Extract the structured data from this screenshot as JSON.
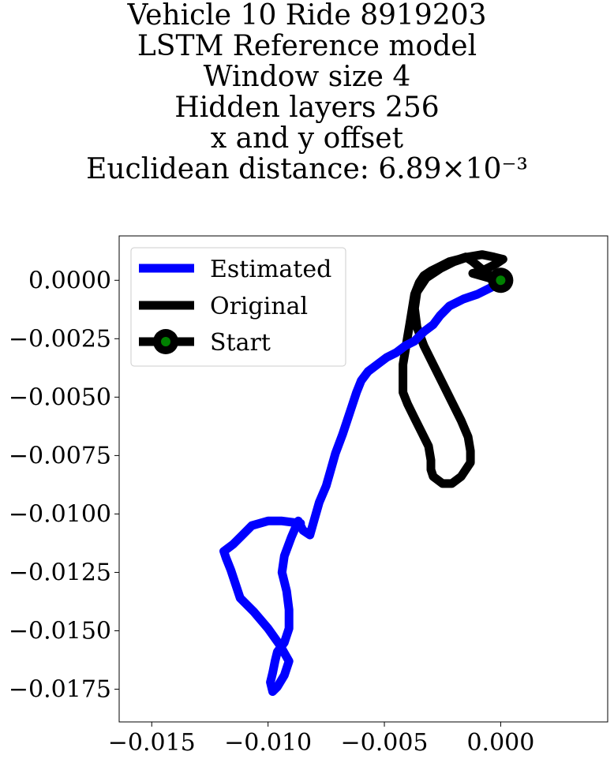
{
  "chart_data": {
    "type": "line",
    "title_lines": [
      "Vehicle 10 Ride 8919203",
      "LSTM Reference model",
      "Window size 4",
      "Hidden layers 256",
      "x and y offset",
      "Euclidean distance: 6.89×10⁻³"
    ],
    "xlabel": "",
    "ylabel": "",
    "xlim": [
      -0.0164,
      0.0046
    ],
    "ylim": [
      -0.0189,
      0.0019
    ],
    "x_ticks": [
      -0.015,
      -0.01,
      -0.005,
      0.0
    ],
    "x_tick_labels": [
      "−0.015",
      "−0.010",
      "−0.005",
      "0.000"
    ],
    "y_ticks": [
      0.0,
      -0.0025,
      -0.005,
      -0.0075,
      -0.01,
      -0.0125,
      -0.015,
      -0.0175
    ],
    "y_tick_labels": [
      "0.0000",
      "−0.0025",
      "−0.0050",
      "−0.0075",
      "−0.0100",
      "−0.0125",
      "−0.0150",
      "−0.0175"
    ],
    "grid": false,
    "legend_position": "top-left",
    "series": [
      {
        "name": "Estimated",
        "color": "#0000ff",
        "points": [
          [
            0.0,
            0.0
          ],
          [
            -0.0004,
            -0.0003
          ],
          [
            -0.001,
            -0.0006
          ],
          [
            -0.0016,
            -0.0008
          ],
          [
            -0.0022,
            -0.0011
          ],
          [
            -0.0026,
            -0.0015
          ],
          [
            -0.0029,
            -0.0019
          ],
          [
            -0.0033,
            -0.0022
          ],
          [
            -0.0037,
            -0.0026
          ],
          [
            -0.0041,
            -0.0028
          ],
          [
            -0.0045,
            -0.0031
          ],
          [
            -0.0049,
            -0.0033
          ],
          [
            -0.0053,
            -0.0036
          ],
          [
            -0.0057,
            -0.0039
          ],
          [
            -0.006,
            -0.0043
          ],
          [
            -0.0062,
            -0.0048
          ],
          [
            -0.0064,
            -0.0054
          ],
          [
            -0.0066,
            -0.006
          ],
          [
            -0.0068,
            -0.0066
          ],
          [
            -0.0071,
            -0.0074
          ],
          [
            -0.0073,
            -0.0081
          ],
          [
            -0.0075,
            -0.0088
          ],
          [
            -0.0078,
            -0.0095
          ],
          [
            -0.008,
            -0.0102
          ],
          [
            -0.0082,
            -0.0109
          ],
          [
            -0.0085,
            -0.0107
          ],
          [
            -0.0087,
            -0.0103
          ],
          [
            -0.009,
            -0.011
          ],
          [
            -0.0093,
            -0.0118
          ],
          [
            -0.0094,
            -0.0125
          ],
          [
            -0.0092,
            -0.0133
          ],
          [
            -0.0091,
            -0.0141
          ],
          [
            -0.0091,
            -0.0149
          ],
          [
            -0.0093,
            -0.0155
          ],
          [
            -0.0096,
            -0.0159
          ],
          [
            -0.0097,
            -0.0163
          ],
          [
            -0.0098,
            -0.0168
          ],
          [
            -0.0099,
            -0.0172
          ],
          [
            -0.0098,
            -0.0176
          ],
          [
            -0.0096,
            -0.0174
          ],
          [
            -0.0093,
            -0.0169
          ],
          [
            -0.0091,
            -0.0163
          ],
          [
            -0.0095,
            -0.0156
          ],
          [
            -0.01,
            -0.0149
          ],
          [
            -0.0106,
            -0.0142
          ],
          [
            -0.0112,
            -0.0136
          ],
          [
            -0.0114,
            -0.013
          ],
          [
            -0.0116,
            -0.0124
          ],
          [
            -0.0118,
            -0.0119
          ],
          [
            -0.0119,
            -0.0116
          ],
          [
            -0.0115,
            -0.0113
          ],
          [
            -0.0111,
            -0.0109
          ],
          [
            -0.0107,
            -0.0105
          ],
          [
            -0.01,
            -0.0103
          ],
          [
            -0.0094,
            -0.0103
          ],
          [
            -0.0086,
            -0.0104
          ]
        ]
      },
      {
        "name": "Original",
        "color": "#000000",
        "points": [
          [
            0.0,
            0.0
          ],
          [
            -0.0006,
            0.0003
          ],
          [
            -0.0012,
            0.0008
          ],
          [
            -0.0015,
            0.001
          ],
          [
            -0.0018,
            0.0009
          ],
          [
            -0.0022,
            0.0008
          ],
          [
            -0.0026,
            0.0006
          ],
          [
            -0.003,
            0.0004
          ],
          [
            -0.0033,
            0.0002
          ],
          [
            -0.0035,
            -0.0001
          ],
          [
            -0.0037,
            -0.0006
          ],
          [
            -0.0038,
            -0.0012
          ],
          [
            -0.0039,
            -0.0018
          ],
          [
            -0.004,
            -0.0024
          ],
          [
            -0.0041,
            -0.003
          ],
          [
            -0.0042,
            -0.0036
          ],
          [
            -0.0042,
            -0.0043
          ],
          [
            -0.0042,
            -0.0048
          ],
          [
            -0.004,
            -0.0053
          ],
          [
            -0.0037,
            -0.0059
          ],
          [
            -0.0034,
            -0.0065
          ],
          [
            -0.0031,
            -0.0071
          ],
          [
            -0.003,
            -0.0077
          ],
          [
            -0.003,
            -0.0081
          ],
          [
            -0.0029,
            -0.0084
          ],
          [
            -0.0025,
            -0.0087
          ],
          [
            -0.0021,
            -0.0087
          ],
          [
            -0.0017,
            -0.0084
          ],
          [
            -0.0013,
            -0.0078
          ],
          [
            -0.0013,
            -0.0073
          ],
          [
            -0.0014,
            -0.0067
          ],
          [
            -0.0017,
            -0.006
          ],
          [
            -0.0021,
            -0.0052
          ],
          [
            -0.0025,
            -0.0044
          ],
          [
            -0.0029,
            -0.0036
          ],
          [
            -0.0033,
            -0.0028
          ],
          [
            -0.0036,
            -0.002
          ],
          [
            -0.0037,
            -0.0012
          ],
          [
            -0.0036,
            -0.0005
          ],
          [
            -0.0032,
            0.0001
          ],
          [
            -0.0026,
            0.0005
          ],
          [
            -0.002,
            0.0008
          ],
          [
            -0.0014,
            0.001
          ],
          [
            -0.0008,
            0.0011
          ],
          [
            -0.0003,
            0.001
          ],
          [
            0.0001,
            0.0009
          ],
          [
            -0.0002,
            0.0007
          ],
          [
            -0.0008,
            0.0004
          ],
          [
            -0.0012,
            0.0003
          ],
          [
            -0.0005,
            0.0001
          ],
          [
            0.0,
            0.0
          ]
        ]
      }
    ],
    "start_point": {
      "name": "Start",
      "x": 0.0,
      "y": 0.0,
      "outer_color": "#000000",
      "inner_color": "#008000"
    }
  }
}
